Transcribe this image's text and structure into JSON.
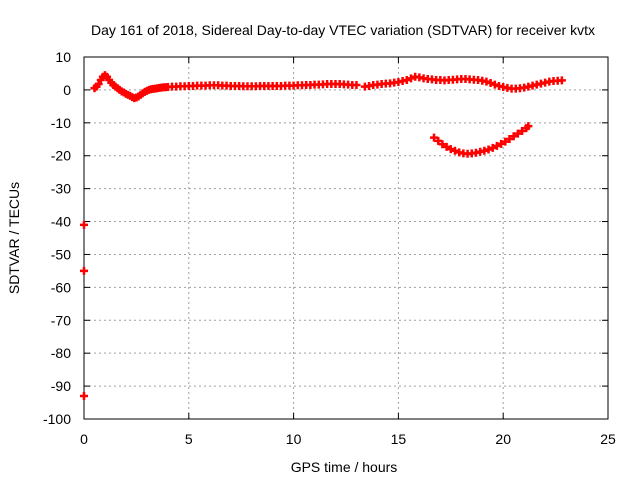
{
  "chart_data": {
    "type": "scatter",
    "title": "Day 161 of 2018, Sidereal Day-to-day VTEC variation (SDTVAR) for receiver kvtx",
    "xlabel": "GPS time / hours",
    "ylabel": "SDTVAR / TECUs",
    "xlim": [
      0,
      25
    ],
    "ylim": [
      -100,
      10
    ],
    "x_ticks": [
      0,
      5,
      10,
      15,
      20,
      25
    ],
    "y_ticks": [
      10,
      0,
      -10,
      -20,
      -30,
      -40,
      -50,
      -60,
      -70,
      -80,
      -90,
      -100
    ],
    "grid": true,
    "legend": "none",
    "marker": "+",
    "color": "#ff0000",
    "series": [
      {
        "x": [
          0.5,
          0.6,
          0.7,
          0.8,
          0.9,
          1.0,
          1.1,
          1.2,
          1.3,
          1.4,
          1.5,
          1.6,
          1.7,
          1.8,
          1.9,
          2.0,
          2.1,
          2.2,
          2.3,
          2.4,
          2.5,
          2.6,
          2.7,
          2.8,
          2.9,
          3.0,
          3.1,
          3.2,
          3.3,
          3.4,
          3.5,
          3.6,
          3.7,
          3.8,
          3.9,
          4.0,
          4.2,
          4.4,
          4.6,
          4.8,
          5.0,
          5.2,
          5.4,
          5.6,
          5.8,
          6.0,
          6.2,
          6.4,
          6.6,
          6.8,
          7.0,
          7.2,
          7.4,
          7.6,
          7.8,
          8.0,
          8.2,
          8.4,
          8.6,
          8.8,
          9.0,
          9.2,
          9.4,
          9.6,
          9.8,
          10.0,
          10.2,
          10.4,
          10.6,
          10.8,
          11.0,
          11.2,
          11.4,
          11.6,
          11.8,
          12.0,
          12.2,
          12.4,
          12.6,
          12.8,
          13.0
        ],
        "y": [
          0.5,
          1.0,
          1.8,
          3.0,
          4.0,
          4.5,
          4.0,
          3.0,
          2.2,
          1.5,
          1.0,
          0.5,
          0.0,
          -0.5,
          -0.8,
          -1.2,
          -1.5,
          -1.8,
          -2.2,
          -2.5,
          -2.3,
          -2.0,
          -1.5,
          -1.0,
          -0.6,
          -0.3,
          0.0,
          0.2,
          0.3,
          0.4,
          0.5,
          0.6,
          0.7,
          0.8,
          0.8,
          0.9,
          1.0,
          1.0,
          1.1,
          1.1,
          1.2,
          1.2,
          1.3,
          1.3,
          1.3,
          1.4,
          1.4,
          1.4,
          1.3,
          1.3,
          1.2,
          1.2,
          1.2,
          1.1,
          1.1,
          1.1,
          1.1,
          1.2,
          1.2,
          1.2,
          1.2,
          1.2,
          1.2,
          1.3,
          1.3,
          1.3,
          1.4,
          1.4,
          1.5,
          1.5,
          1.6,
          1.6,
          1.7,
          1.8,
          1.8,
          1.8,
          1.8,
          1.7,
          1.6,
          1.5,
          1.5
        ]
      },
      {
        "x": [
          13.4,
          13.6,
          13.8,
          14.0,
          14.2,
          14.4,
          14.6,
          14.8,
          15.0,
          15.2,
          15.4,
          15.6,
          15.8,
          16.0,
          16.2,
          16.4,
          16.6,
          16.8,
          17.0,
          17.2,
          17.4,
          17.6,
          17.8,
          18.0,
          18.2,
          18.4,
          18.6,
          18.8,
          19.0,
          19.2,
          19.4,
          19.6,
          19.8,
          20.0,
          20.2,
          20.4,
          20.6,
          20.8,
          21.0,
          21.2,
          21.4,
          21.6,
          21.8,
          22.0,
          22.2,
          22.4,
          22.6,
          22.8
        ],
        "y": [
          1.0,
          1.2,
          1.5,
          1.6,
          1.8,
          1.9,
          2.0,
          2.2,
          2.4,
          2.7,
          3.0,
          3.5,
          4.0,
          3.8,
          3.5,
          3.3,
          3.2,
          3.0,
          3.0,
          2.9,
          3.0,
          3.1,
          3.2,
          3.3,
          3.3,
          3.2,
          3.1,
          3.0,
          2.8,
          2.5,
          2.1,
          1.6,
          1.2,
          0.9,
          0.6,
          0.4,
          0.4,
          0.5,
          0.7,
          1.0,
          1.3,
          1.6,
          1.9,
          2.2,
          2.5,
          2.7,
          2.8,
          2.9
        ]
      },
      {
        "x": [
          16.7,
          16.9,
          17.1,
          17.3,
          17.5,
          17.7,
          17.9,
          18.1,
          18.3,
          18.5,
          18.7,
          18.9,
          19.1,
          19.3,
          19.5,
          19.7,
          19.9,
          20.1,
          20.3,
          20.5,
          20.7,
          20.9,
          21.1,
          21.2
        ],
        "y": [
          -14.5,
          -15.5,
          -16.5,
          -17.3,
          -18.0,
          -18.5,
          -19.0,
          -19.3,
          -19.4,
          -19.3,
          -19.1,
          -18.8,
          -18.5,
          -18.1,
          -17.6,
          -17.0,
          -16.4,
          -15.7,
          -14.9,
          -14.1,
          -13.3,
          -12.5,
          -11.6,
          -11.0
        ]
      },
      {
        "x": [
          0.0,
          0.0,
          0.0
        ],
        "y": [
          -41,
          -55,
          -93
        ]
      }
    ]
  }
}
